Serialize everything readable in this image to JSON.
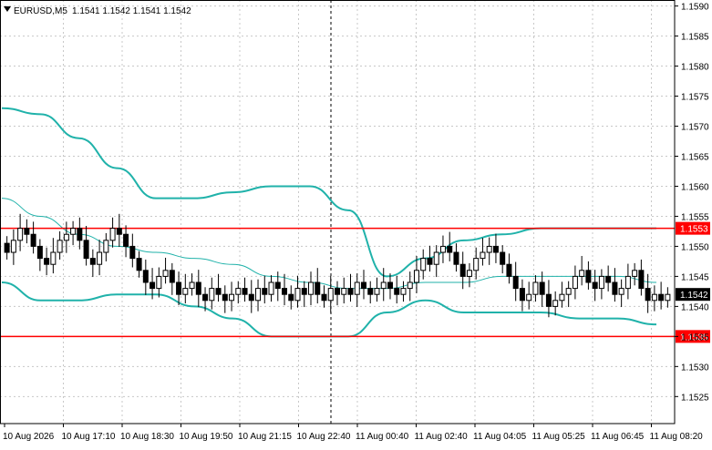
{
  "header": {
    "symbol": "EURUSD,M5",
    "ohlc": "1.1541 1.1542 1.1541 1.1542",
    "menu_icon": "triangle-down-icon"
  },
  "colors": {
    "band": "#20b2aa",
    "candle": "#000000",
    "grid": "#c8c8c8",
    "level": "#ff0000",
    "price_tag_bg": "#000000",
    "level_tag_bg": "#ff0000"
  },
  "chart_data": {
    "type": "candlestick",
    "title": "",
    "ylim": [
      1.15205,
      1.1591
    ],
    "y_ticks": [
      "1.1590",
      "1.1585",
      "1.1580",
      "1.1575",
      "1.1570",
      "1.1565",
      "1.1560",
      "1.1555",
      "1.1550",
      "1.1545",
      "1.1540",
      "1.1535",
      "1.1530",
      "1.1525"
    ],
    "x_ticks": [
      "10 Aug 2026",
      "10 Aug 17:10",
      "10 Aug 18:30",
      "10 Aug 19:50",
      "10 Aug 21:15",
      "10 Aug 22:40",
      "11 Aug 00:40",
      "11 Aug 02:40",
      "11 Aug 04:05",
      "11 Aug 05:25",
      "11 Aug 06:45",
      "11 Aug 08:20"
    ],
    "horizontal_levels": [
      {
        "price": 1.1553,
        "label": "1.1553"
      },
      {
        "price": 1.1535,
        "label": "1.1535"
      }
    ],
    "current_price": {
      "price": 1.1542,
      "label": "1.1542"
    },
    "vertical_marker_index": 7.0,
    "closes": [
      1.1549,
      1.1551,
      1.1553,
      1.1552,
      1.155,
      1.1548,
      1.1547,
      1.1549,
      1.1551,
      1.1552,
      1.1553,
      1.1551,
      1.1548,
      1.1547,
      1.1549,
      1.1551,
      1.1553,
      1.1552,
      1.155,
      1.1548,
      1.1546,
      1.1544,
      1.1543,
      1.1545,
      1.1546,
      1.1544,
      1.1542,
      1.1543,
      1.1544,
      1.1542,
      1.1541,
      1.1543,
      1.1542,
      1.1541,
      1.1542,
      1.1543,
      1.1542,
      1.1541,
      1.1543,
      1.1542,
      1.1544,
      1.1543,
      1.1542,
      1.1541,
      1.1543,
      1.1542,
      1.1544,
      1.1542,
      1.1541,
      1.1543,
      1.1542,
      1.1543,
      1.1542,
      1.1544,
      1.1543,
      1.1542,
      1.1543,
      1.1544,
      1.1543,
      1.1542,
      1.1543,
      1.1544,
      1.1546,
      1.1548,
      1.1547,
      1.1549,
      1.155,
      1.1549,
      1.1547,
      1.1545,
      1.1546,
      1.1548,
      1.1549,
      1.155,
      1.1549,
      1.1547,
      1.1545,
      1.1543,
      1.1541,
      1.1542,
      1.1544,
      1.1542,
      1.154,
      1.1541,
      1.1542,
      1.1543,
      1.1545,
      1.1546,
      1.1544,
      1.1543,
      1.1545,
      1.1544,
      1.1542,
      1.1543,
      1.1545,
      1.1546,
      1.1543,
      1.1541,
      1.1542,
      1.1541,
      1.1542
    ],
    "upper_band": [
      1.1573,
      1.1572,
      1.1568,
      1.1563,
      1.1558,
      1.1558,
      1.1559,
      1.156,
      1.156,
      1.1556,
      1.1545,
      1.1548,
      1.1551,
      1.1552,
      1.1553,
      1.1553,
      1.1553,
      1.1553
    ],
    "middle_band": [
      1.1558,
      1.1555,
      1.1552,
      1.155,
      1.1549,
      1.1548,
      1.1547,
      1.1545,
      1.1544,
      1.1543,
      1.1543,
      1.1544,
      1.1544,
      1.1545,
      1.1545,
      1.1545,
      1.1545,
      1.1544
    ],
    "lower_band": [
      1.1544,
      1.1541,
      1.1541,
      1.1542,
      1.1542,
      1.154,
      1.1538,
      1.1535,
      1.1535,
      1.1535,
      1.1539,
      1.1541,
      1.1539,
      1.1539,
      1.1539,
      1.1538,
      1.1538,
      1.1537
    ]
  }
}
